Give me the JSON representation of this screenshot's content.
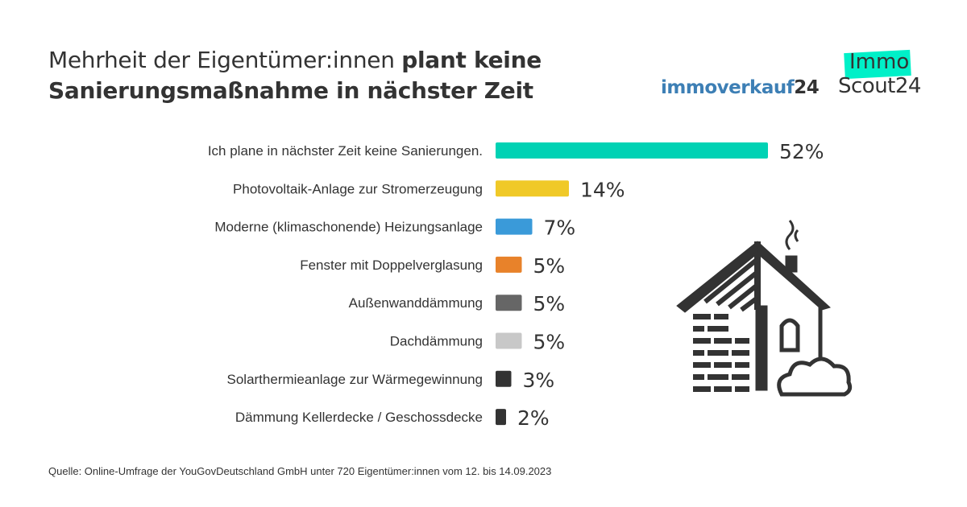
{
  "title": {
    "normal": "Mehrheit der Eigentümer:innen ",
    "bold_1": "plant keine",
    "bold_2": "Sanierungsmaßnahme in nächster Zeit"
  },
  "logos": {
    "immoverkauf": "immoverkauf",
    "immoverkauf_num": "24",
    "immo": "Immo",
    "scout": "Scout24"
  },
  "source": "Quelle: Online-Umfrage der YouGovDeutschland GmbH unter 720 Eigentümer:innen vom 12. bis 14.09.2023",
  "chart_data": {
    "type": "bar",
    "orientation": "horizontal",
    "categories": [
      "Ich plane in nächster Zeit keine Sanierungen.",
      "Photovoltaik-Anlage zur Stromerzeugung",
      "Moderne (klimaschonende) Heizungsanlage",
      "Fenster mit Doppelverglasung",
      "Außenwanddämmung",
      "Dachdämmung",
      "Solarthermieanlage zur Wärmegewinnung",
      "Dämmung Kellerdecke / Geschossdecke"
    ],
    "values": [
      52,
      14,
      7,
      5,
      5,
      5,
      3,
      2
    ],
    "labels": [
      "52%",
      "14%",
      "7%",
      "5%",
      "5%",
      "5%",
      "3%",
      "2%"
    ],
    "colors": [
      "#00d2b4",
      "#f0c928",
      "#3a9ad9",
      "#e8822a",
      "#666666",
      "#c8c8c8",
      "#333333",
      "#333333"
    ],
    "unit": "%"
  }
}
